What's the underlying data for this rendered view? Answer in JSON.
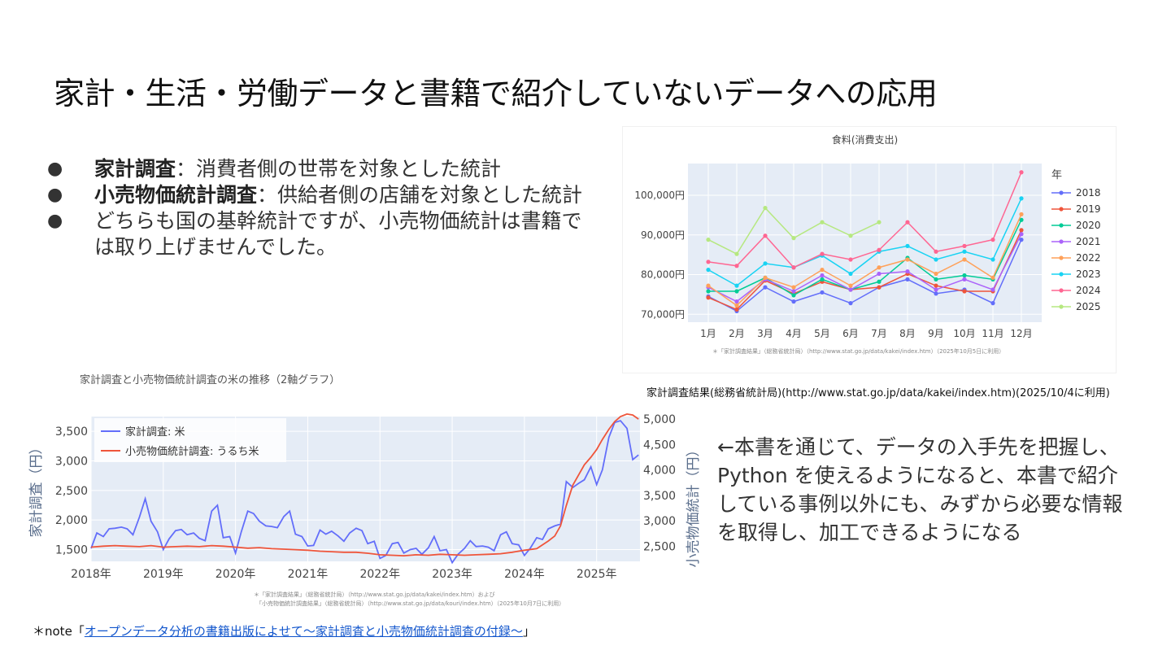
{
  "slide": {
    "title": "家計・生活・労働データと書籍で紹介していないデータへの応用",
    "bullets": [
      {
        "bold": "家計調査",
        "text": "：消費者側の世帯を対象とした統計"
      },
      {
        "bold": "小売物価統計調査",
        "text": "：供給者側の店舗を対象とした統計"
      },
      {
        "bold": "",
        "text": "どちらも国の基幹統計ですが、小売物価統計は書籍では取り上げませんでした。"
      }
    ],
    "food_caption": "家計調査結果(総務省統計局)(http://www.stat.go.jp/data/kakei/index.htm)(2025/10/4に利用)",
    "rice_heading": "家計調査と小売物価統計調査の米の推移（2軸グラフ）",
    "right_text": "←本書を通じて、データの入手先を把握し、Python を使えるようになると、本書で紹介している事例以外にも、みずから必要な情報を取得し、加工できるようになる",
    "footnote_prefix": "＊note「",
    "footnote_link": "オープンデータ分析の書籍出版によせて～家計調査と小売物価統計調査の付録～",
    "footnote_suffix": "」"
  },
  "chart_data": [
    {
      "type": "line",
      "title": "食料(消費支出)",
      "categories": [
        "1月",
        "2月",
        "3月",
        "4月",
        "5月",
        "6月",
        "7月",
        "8月",
        "9月",
        "10月",
        "11月",
        "12月"
      ],
      "ylim": [
        68000,
        108000
      ],
      "yticks": [
        70000,
        80000,
        90000,
        100000
      ],
      "ytick_labels": [
        "70,000円",
        "80,000円",
        "90,000円",
        "100,000円"
      ],
      "legend_title": "年",
      "legend_position": "right",
      "grid": true,
      "source_note": "＊「家計調査結果」（総務省統計局）（http://www.stat.go.jp/data/kakei/index.htm）（2025年10月5日に利用）",
      "series": [
        {
          "name": "2018",
          "color": "#636efa",
          "values": [
            74500,
            70800,
            76800,
            73200,
            75500,
            72800,
            76800,
            78800,
            75200,
            76200,
            72800,
            88800
          ]
        },
        {
          "name": "2019",
          "color": "#ef553b",
          "values": [
            74200,
            71200,
            78500,
            75200,
            78200,
            76200,
            76800,
            80200,
            77200,
            75800,
            75800,
            91200
          ]
        },
        {
          "name": "2020",
          "color": "#00cc96",
          "values": [
            75800,
            75800,
            79200,
            74800,
            78800,
            76200,
            78200,
            84200,
            78800,
            79800,
            78800,
            93800
          ]
        },
        {
          "name": "2021",
          "color": "#ab63fa",
          "values": [
            76800,
            73200,
            78800,
            75800,
            79800,
            76200,
            80200,
            80800,
            76200,
            78800,
            76200,
            90200
          ]
        },
        {
          "name": "2022",
          "color": "#ffa15a",
          "values": [
            77200,
            72200,
            79200,
            76800,
            81200,
            77200,
            81800,
            83800,
            80200,
            83800,
            79200,
            95200
          ]
        },
        {
          "name": "2023",
          "color": "#19d3f3",
          "values": [
            81200,
            77200,
            82800,
            81800,
            84800,
            80200,
            85800,
            87200,
            83800,
            85800,
            83800,
            99200
          ]
        },
        {
          "name": "2024",
          "color": "#ff6692",
          "values": [
            83200,
            82200,
            89800,
            81800,
            85200,
            83800,
            86200,
            93200,
            85800,
            87200,
            88800,
            105800
          ]
        },
        {
          "name": "2025",
          "color": "#b6e880",
          "values": [
            88800,
            85200,
            96800,
            89200,
            93200,
            89800,
            93200,
            null,
            null,
            null,
            null,
            null
          ]
        }
      ]
    },
    {
      "type": "line",
      "title": "",
      "x_ticks": [
        "2018年",
        "2019年",
        "2020年",
        "2021年",
        "2022年",
        "2023年",
        "2024年",
        "2025年"
      ],
      "xlim": [
        2018.0,
        2025.6
      ],
      "y_left": {
        "label": "家計調査（円）",
        "lim": [
          1300,
          3750
        ],
        "ticks": [
          1500,
          2000,
          2500,
          3000,
          3500
        ],
        "tick_labels": [
          "1,500",
          "2,000",
          "2,500",
          "3,000",
          "3,500"
        ]
      },
      "y_right": {
        "label": "小売物価統計（円）",
        "lim": [
          2200,
          5050
        ],
        "ticks": [
          2500,
          3000,
          3500,
          4000,
          4500,
          5000
        ],
        "tick_labels": [
          "2,500",
          "3,000",
          "3,500",
          "4,000",
          "4,500",
          "5,000"
        ]
      },
      "legend_position": "top-left",
      "grid": true,
      "source_note_1": "＊「家計調査結果」（総務省統計局）（http://www.stat.go.jp/data/kakei/index.htm）および",
      "source_note_2": "「小売物価統計調査結果」（総務省統計局）（http://www.stat.go.jp/data/kouri/index.htm）（2025年10月7日に利用）",
      "series": [
        {
          "name": "家計調査: 米",
          "axis": "left",
          "color": "#636efa",
          "x": [
            2018.0,
            2018.08,
            2018.17,
            2018.25,
            2018.33,
            2018.42,
            2018.5,
            2018.58,
            2018.67,
            2018.75,
            2018.83,
            2018.92,
            2019.0,
            2019.08,
            2019.17,
            2019.25,
            2019.33,
            2019.42,
            2019.5,
            2019.58,
            2019.67,
            2019.75,
            2019.83,
            2019.92,
            2020.0,
            2020.08,
            2020.17,
            2020.25,
            2020.33,
            2020.42,
            2020.5,
            2020.58,
            2020.67,
            2020.75,
            2020.83,
            2020.92,
            2021.0,
            2021.08,
            2021.17,
            2021.25,
            2021.33,
            2021.42,
            2021.5,
            2021.58,
            2021.67,
            2021.75,
            2021.83,
            2021.92,
            2022.0,
            2022.08,
            2022.17,
            2022.25,
            2022.33,
            2022.42,
            2022.5,
            2022.58,
            2022.67,
            2022.75,
            2022.83,
            2022.92,
            2023.0,
            2023.08,
            2023.17,
            2023.25,
            2023.33,
            2023.42,
            2023.5,
            2023.58,
            2023.67,
            2023.75,
            2023.83,
            2023.92,
            2024.0,
            2024.08,
            2024.17,
            2024.25,
            2024.33,
            2024.42,
            2024.5,
            2024.58,
            2024.67,
            2024.75,
            2024.83,
            2024.92,
            2025.0,
            2025.08,
            2025.17,
            2025.25,
            2025.33,
            2025.42,
            2025.5,
            2025.58
          ],
          "values": [
            1520,
            1780,
            1720,
            1850,
            1860,
            1880,
            1850,
            1750,
            2050,
            2360,
            1980,
            1800,
            1500,
            1680,
            1820,
            1840,
            1750,
            1780,
            1690,
            1650,
            2150,
            2250,
            1700,
            1720,
            1440,
            1800,
            2150,
            2110,
            1980,
            1900,
            1890,
            1870,
            2060,
            2150,
            1760,
            1720,
            1560,
            1570,
            1830,
            1760,
            1810,
            1730,
            1640,
            1780,
            1860,
            1820,
            1600,
            1640,
            1350,
            1400,
            1600,
            1620,
            1440,
            1500,
            1520,
            1420,
            1530,
            1720,
            1480,
            1500,
            1280,
            1420,
            1520,
            1650,
            1550,
            1560,
            1540,
            1480,
            1750,
            1800,
            1600,
            1580,
            1400,
            1520,
            1700,
            1670,
            1850,
            1900,
            1930,
            2650,
            2550,
            2620,
            2680,
            2900,
            2600,
            2850,
            3400,
            3650,
            3680,
            3550,
            3020,
            3100
          ]
        },
        {
          "name": "小売物価統計調査: うるち米",
          "axis": "right",
          "color": "#ef553b",
          "x": [
            2018.0,
            2018.17,
            2018.33,
            2018.5,
            2018.67,
            2018.83,
            2019.0,
            2019.17,
            2019.33,
            2019.5,
            2019.67,
            2019.83,
            2020.0,
            2020.17,
            2020.33,
            2020.5,
            2020.67,
            2020.83,
            2021.0,
            2021.17,
            2021.33,
            2021.5,
            2021.67,
            2021.83,
            2022.0,
            2022.17,
            2022.33,
            2022.5,
            2022.67,
            2022.83,
            2023.0,
            2023.17,
            2023.33,
            2023.5,
            2023.67,
            2023.83,
            2024.0,
            2024.17,
            2024.33,
            2024.42,
            2024.5,
            2024.58,
            2024.67,
            2024.75,
            2024.83,
            2024.92,
            2025.0,
            2025.08,
            2025.17,
            2025.25,
            2025.33,
            2025.42,
            2025.5,
            2025.58
          ],
          "values": [
            2480,
            2500,
            2510,
            2500,
            2490,
            2510,
            2480,
            2490,
            2500,
            2490,
            2510,
            2500,
            2480,
            2460,
            2470,
            2450,
            2440,
            2430,
            2420,
            2400,
            2390,
            2380,
            2380,
            2360,
            2330,
            2320,
            2310,
            2330,
            2320,
            2340,
            2330,
            2320,
            2330,
            2340,
            2350,
            2380,
            2420,
            2450,
            2600,
            2700,
            2900,
            3300,
            3700,
            3900,
            4100,
            4250,
            4400,
            4600,
            4800,
            4950,
            5050,
            5100,
            5080,
            5000
          ]
        }
      ]
    }
  ]
}
